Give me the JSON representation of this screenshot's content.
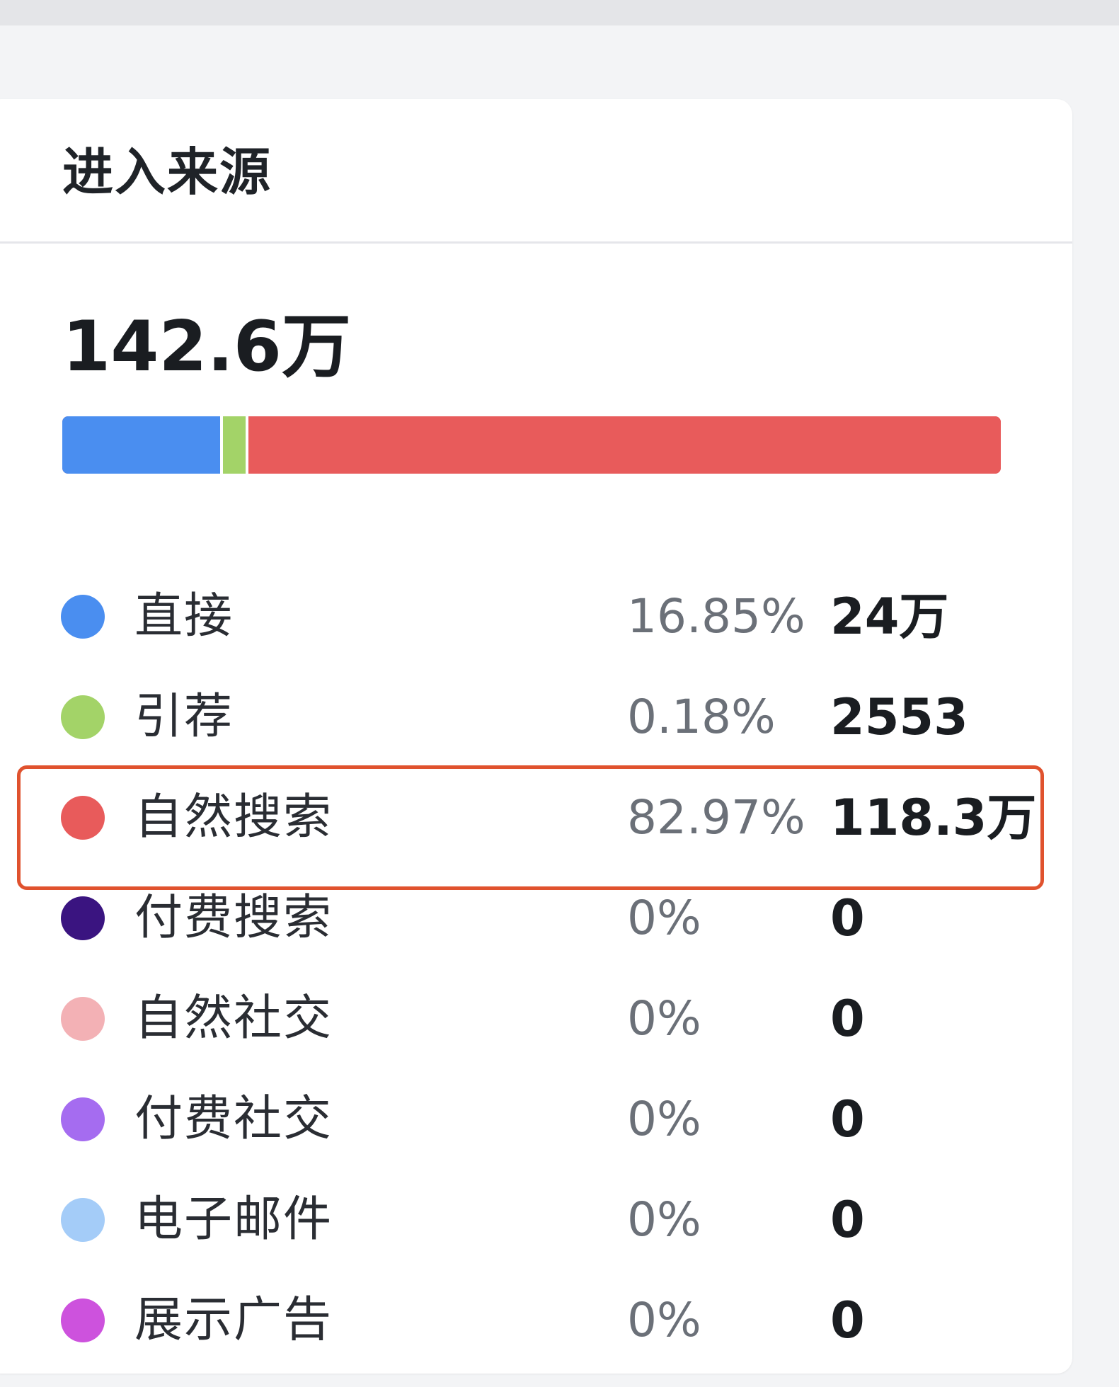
{
  "panel": {
    "title": "进入来源",
    "total": "142.6万"
  },
  "sources": [
    {
      "name": "直接",
      "percent": "16.85%",
      "value": "24万",
      "color": "#4a8ef0",
      "share": 16.85
    },
    {
      "name": "引荐",
      "percent": "0.18%",
      "value": "2553",
      "color": "#a3d368",
      "share": 0.18
    },
    {
      "name": "自然搜索",
      "percent": "82.97%",
      "value": "118.3万",
      "color": "#e85b5b",
      "share": 82.97,
      "highlighted": true
    },
    {
      "name": "付费搜索",
      "percent": "0%",
      "value": "0",
      "color": "#3a1480",
      "share": 0
    },
    {
      "name": "自然社交",
      "percent": "0%",
      "value": "0",
      "color": "#f3b1b5",
      "share": 0
    },
    {
      "name": "付费社交",
      "percent": "0%",
      "value": "0",
      "color": "#a56cf0",
      "share": 0
    },
    {
      "name": "电子邮件",
      "percent": "0%",
      "value": "0",
      "color": "#a4ccf8",
      "share": 0
    },
    {
      "name": "展示广告",
      "percent": "0%",
      "value": "0",
      "color": "#cd52dd",
      "share": 0
    }
  ]
}
